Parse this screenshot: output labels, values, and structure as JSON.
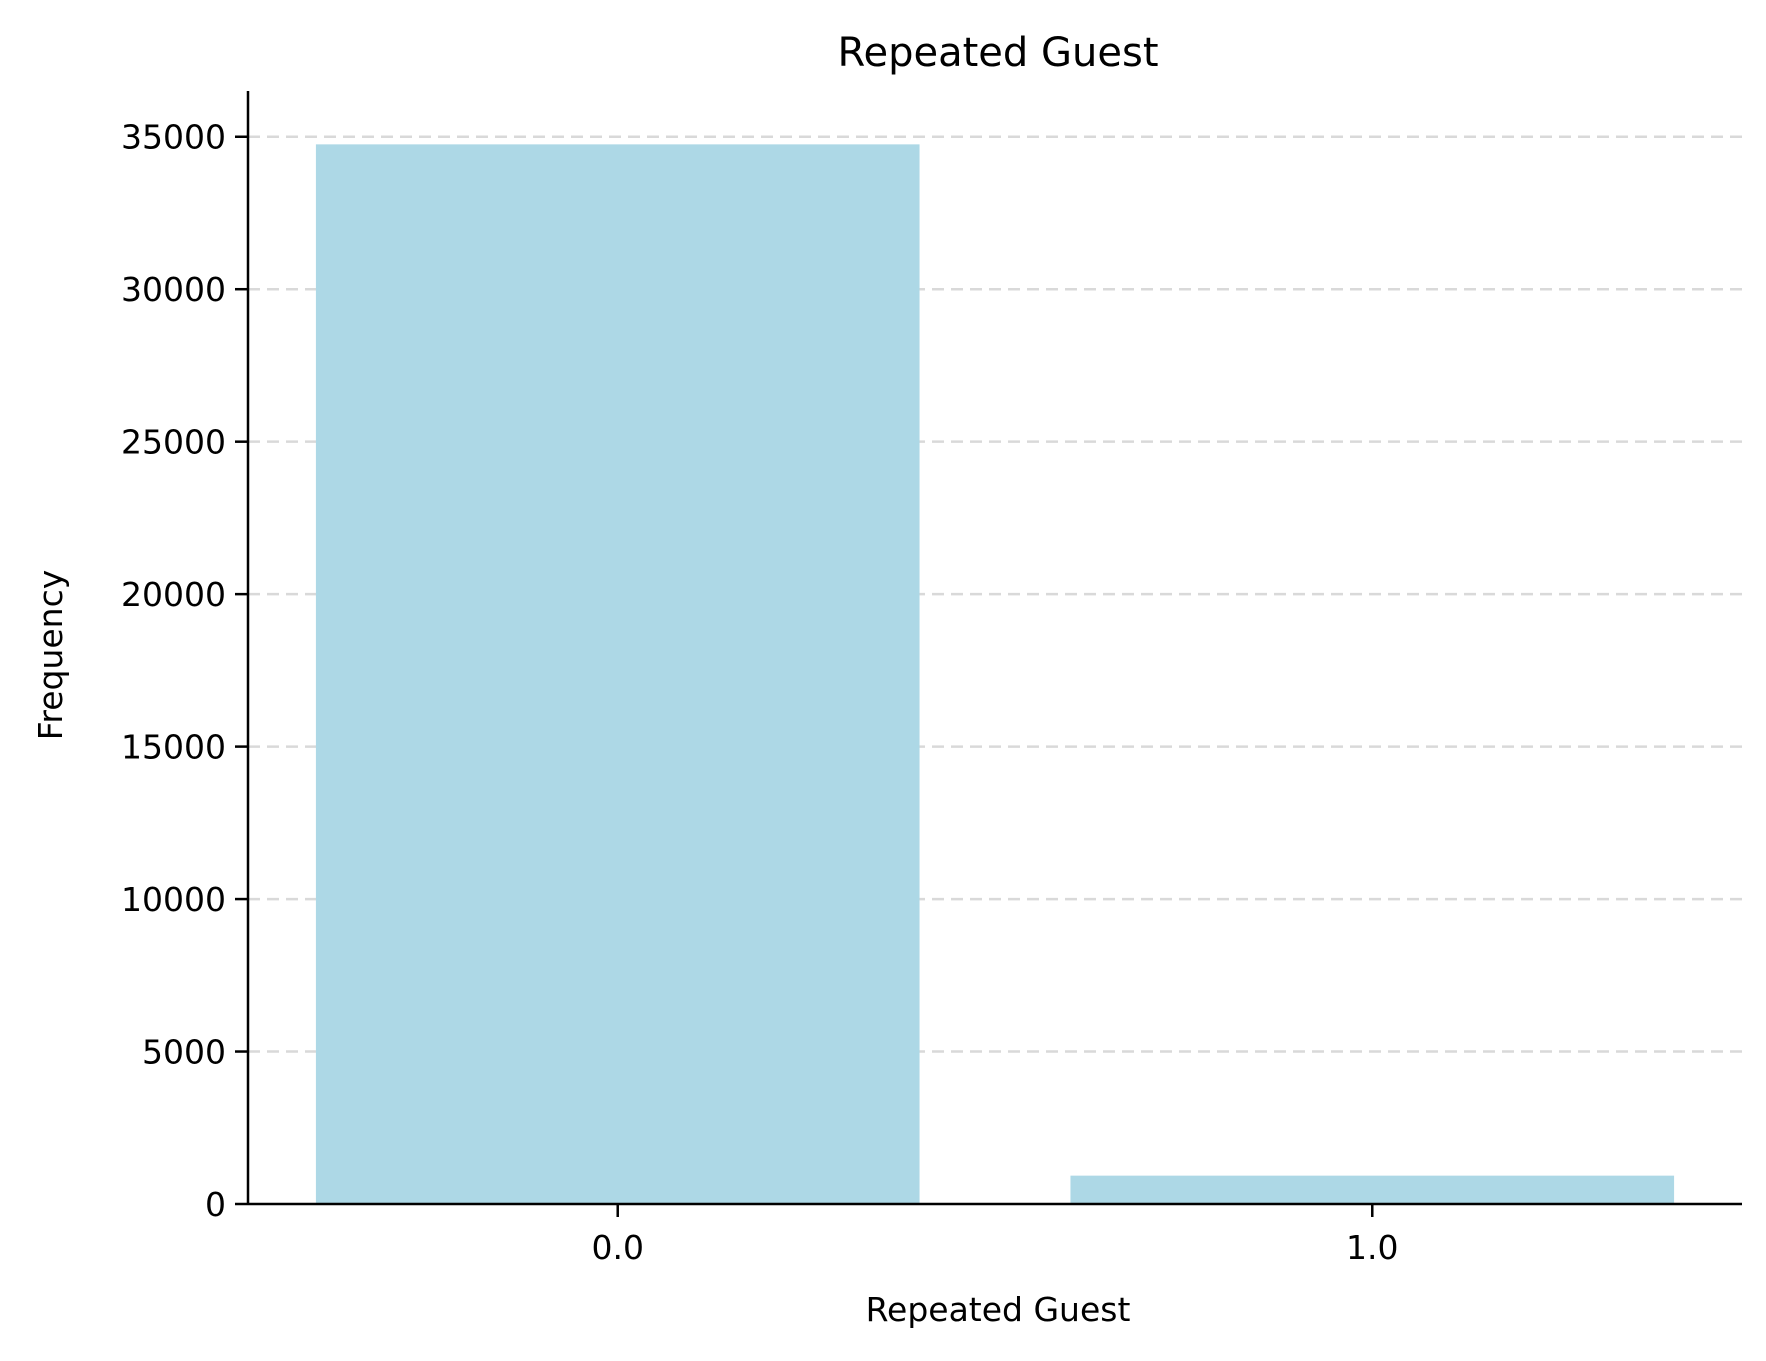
{
  "chart_data": {
    "type": "bar",
    "title": "Repeated Guest",
    "xlabel": "Repeated Guest",
    "ylabel": "Frequency",
    "categories": [
      "0.0",
      "1.0"
    ],
    "values": [
      34750,
      930
    ],
    "ylim": [
      0,
      36500
    ],
    "yticks": [
      0,
      5000,
      10000,
      15000,
      20000,
      25000,
      30000,
      35000
    ],
    "ytick_labels": [
      "0",
      "5000",
      "10000",
      "15000",
      "20000",
      "25000",
      "30000",
      "35000"
    ],
    "grid": "y-axis dashed",
    "bar_color": "#add8e6",
    "grid_color": "#d9d9d9"
  }
}
